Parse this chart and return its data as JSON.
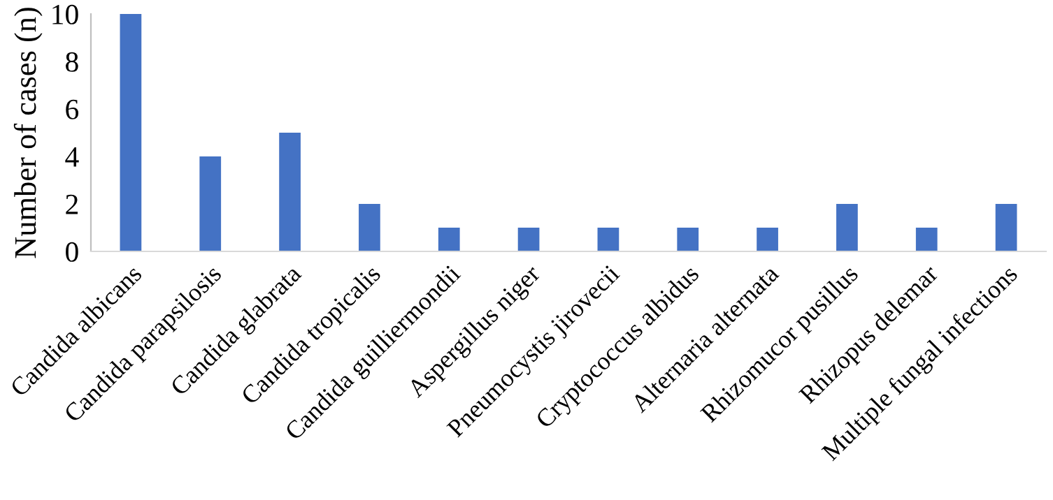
{
  "chart_data": {
    "type": "bar",
    "ylabel": "Number of cases (n)",
    "categories": [
      "Candida albicans",
      "Candida parapsilosis",
      "Candida glabrata",
      "Candida tropicalis",
      "Candida guilliermondii",
      "Aspergillus niger",
      "Pneumocystis jirovecii",
      "Cryptococcus albidus",
      "Alternaria alternata",
      "Rhizomucor pusillus",
      "Rhizopus delemar",
      "Multiple fungal infections"
    ],
    "values": [
      10,
      4,
      5,
      2,
      1,
      1,
      1,
      1,
      1,
      2,
      1,
      2
    ],
    "color": "#4472c4",
    "ylim": [
      0,
      10
    ],
    "yticks": [
      0,
      2,
      4,
      6,
      8,
      10
    ],
    "grid": false
  }
}
